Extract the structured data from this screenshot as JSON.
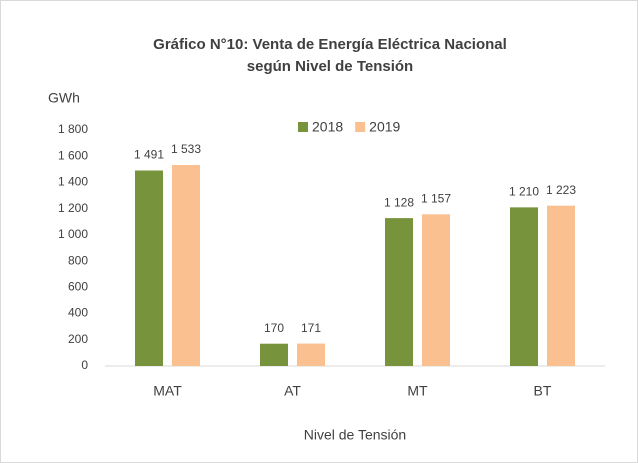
{
  "chart_data": {
    "type": "bar",
    "title": [
      "Gráfico N°10: Venta de Energía Eléctrica Nacional",
      "según Nivel de Tensión"
    ],
    "y_label": "GWh",
    "x_label": "Nivel de Tensión",
    "categories": [
      "MAT",
      "AT",
      "MT",
      "BT"
    ],
    "series": [
      {
        "name": "2018",
        "color": "#77933c",
        "values": [
          1491,
          170,
          1128,
          1210
        ],
        "value_labels": [
          "1 491",
          "170",
          "1 128",
          "1 210"
        ]
      },
      {
        "name": "2019",
        "color": "#fac090",
        "values": [
          1533,
          171,
          1157,
          1223
        ],
        "value_labels": [
          "1 533",
          "171",
          "1 157",
          "1 223"
        ]
      }
    ],
    "ylim": [
      0,
      1800
    ],
    "yticks": [
      0,
      200,
      400,
      600,
      800,
      {
        "value": 1000,
        "label": "1 000"
      },
      {
        "value": 1200,
        "label": "1 200"
      },
      {
        "value": 1400,
        "label": "1 400"
      },
      {
        "value": 1600,
        "label": "1 600"
      },
      {
        "value": 1800,
        "label": "1 800"
      }
    ],
    "grid": false,
    "legend": "top"
  }
}
